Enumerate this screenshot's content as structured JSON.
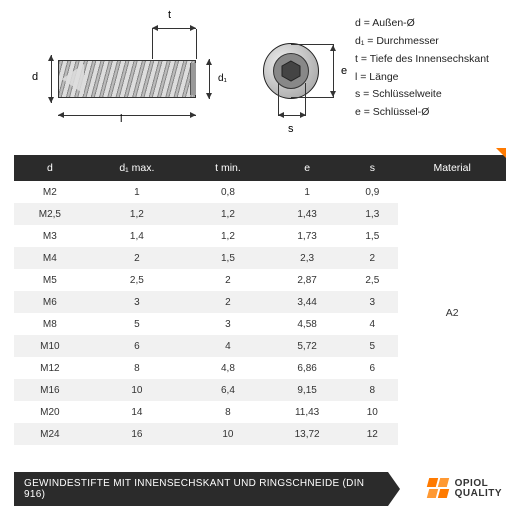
{
  "legend": {
    "d": "d   =  Außen-Ø",
    "d1": "d₁  =  Durchmesser",
    "t": "t   =  Tiefe des Innensechskant",
    "l": "l   =  Länge",
    "s": "s   =  Schlüsselweite",
    "e": "e   =  Schlüssel-Ø"
  },
  "diagram_labels": {
    "d": "d",
    "d1": "d₁",
    "t": "t",
    "l": "l",
    "s": "s",
    "e": "e"
  },
  "table": {
    "columns": [
      "d",
      "d₁ max.",
      "t min.",
      "e",
      "s",
      "Material"
    ],
    "rows": [
      [
        "M2",
        "1",
        "0,8",
        "1",
        "0,9"
      ],
      [
        "M2,5",
        "1,2",
        "1,2",
        "1,43",
        "1,3"
      ],
      [
        "M3",
        "1,4",
        "1,2",
        "1,73",
        "1,5"
      ],
      [
        "M4",
        "2",
        "1,5",
        "2,3",
        "2"
      ],
      [
        "M5",
        "2,5",
        "2",
        "2,87",
        "2,5"
      ],
      [
        "M6",
        "3",
        "2",
        "3,44",
        "3"
      ],
      [
        "M8",
        "5",
        "3",
        "4,58",
        "4"
      ],
      [
        "M10",
        "6",
        "4",
        "5,72",
        "5"
      ],
      [
        "M12",
        "8",
        "4,8",
        "6,86",
        "6"
      ],
      [
        "M16",
        "10",
        "6,4",
        "9,15",
        "8"
      ],
      [
        "M20",
        "14",
        "8",
        "11,43",
        "10"
      ],
      [
        "M24",
        "16",
        "10",
        "13,72",
        "12"
      ]
    ],
    "material": "A2",
    "header_bg": "#2b2b2b",
    "header_fg": "#ffffff",
    "row_alt_bg": "#f1f1f1"
  },
  "footer": {
    "title": "GEWINDESTIFTE MIT INNENSECHSKANT UND RINGSCHNEIDE (DIN 916)",
    "logo_line1": "OPIOL",
    "logo_line2": "QUALITY",
    "accent_color": "#ff7a00"
  }
}
